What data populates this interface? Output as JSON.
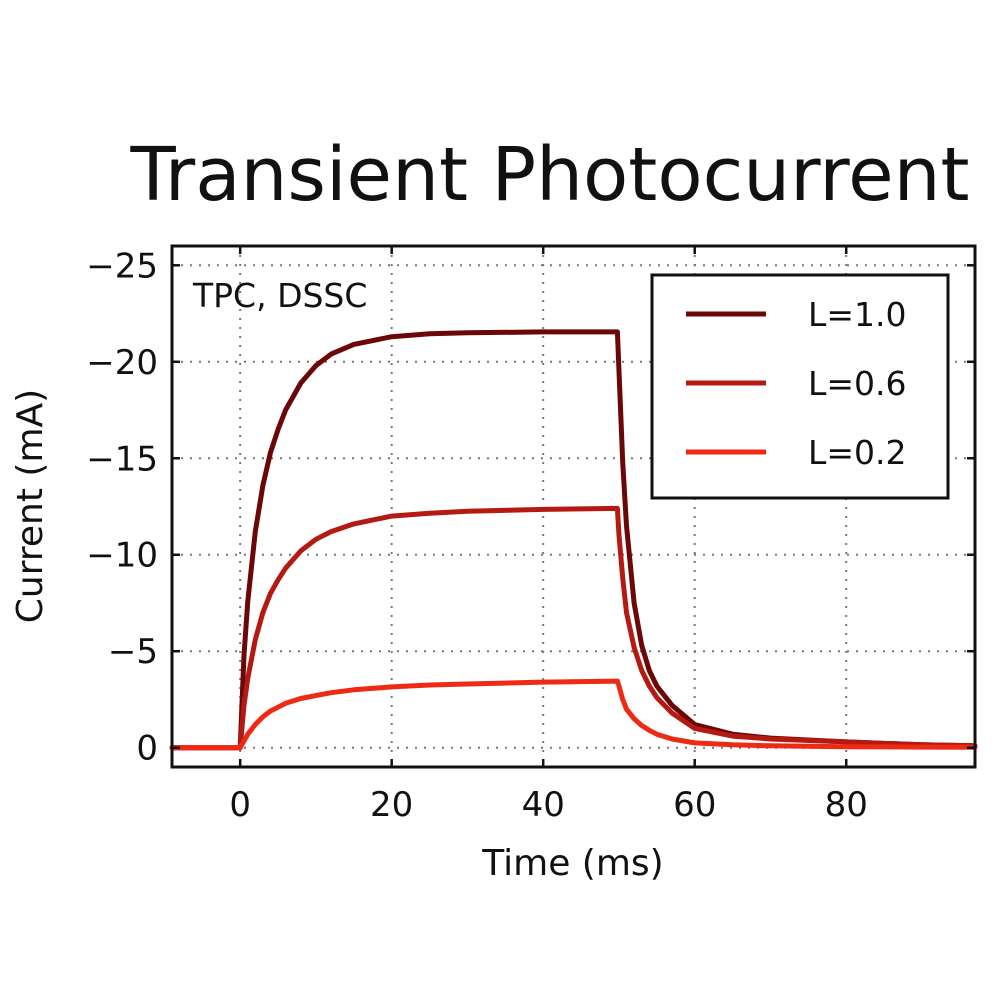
{
  "chart_data": {
    "type": "line",
    "title": "Transient Photocurrent",
    "xlabel": "Time (ms)",
    "ylabel": "Current (mA)",
    "annotation": "TPC, DSSC",
    "xlim": [
      -9,
      97
    ],
    "ylim": [
      1,
      -26
    ],
    "xticks": [
      0,
      20,
      40,
      60,
      80
    ],
    "yticks": [
      0,
      -5,
      -10,
      -15,
      -20,
      -25
    ],
    "xtick_labels": [
      "0",
      "20",
      "40",
      "60",
      "80"
    ],
    "ytick_labels": [
      "0",
      "−5",
      "−10",
      "−15",
      "−20",
      "−25"
    ],
    "grid": true,
    "legend_position": "top-right",
    "series": [
      {
        "name": "L=1.0",
        "color": "#6b0707",
        "x": [
          -9,
          0,
          0.5,
          1,
          2,
          3,
          4,
          5,
          6,
          8,
          10,
          12,
          15,
          20,
          25,
          30,
          40,
          49.8,
          50,
          50.5,
          51,
          52,
          53,
          54,
          55,
          57,
          60,
          65,
          70,
          80,
          90,
          97
        ],
        "y": [
          0,
          0,
          -4.8,
          -7.6,
          -11.2,
          -13.6,
          -15.3,
          -16.5,
          -17.5,
          -18.9,
          -19.8,
          -20.4,
          -20.9,
          -21.3,
          -21.45,
          -21.5,
          -21.55,
          -21.55,
          -19.5,
          -14.8,
          -11.5,
          -7.5,
          -5.3,
          -4.0,
          -3.2,
          -2.2,
          -1.2,
          -0.7,
          -0.5,
          -0.3,
          -0.15,
          -0.1
        ]
      },
      {
        "name": "L=0.6",
        "color": "#b51a12",
        "x": [
          -9,
          0,
          0.5,
          1,
          2,
          3,
          4,
          5,
          6,
          8,
          10,
          12,
          15,
          20,
          25,
          30,
          40,
          49.8,
          50,
          50.5,
          51,
          52,
          53,
          54,
          55,
          57,
          60,
          65,
          70,
          80,
          90,
          97
        ],
        "y": [
          0,
          0,
          -2.2,
          -3.6,
          -5.6,
          -7.0,
          -8.0,
          -8.7,
          -9.3,
          -10.2,
          -10.8,
          -11.2,
          -11.6,
          -12.0,
          -12.15,
          -12.25,
          -12.35,
          -12.4,
          -11.0,
          -8.8,
          -7.0,
          -5.2,
          -4.0,
          -3.2,
          -2.6,
          -1.8,
          -1.0,
          -0.6,
          -0.45,
          -0.3,
          -0.15,
          -0.1
        ]
      },
      {
        "name": "L=0.2",
        "color": "#ee2a14",
        "x": [
          -9,
          0,
          1,
          2,
          3,
          4,
          5,
          6,
          8,
          10,
          12,
          15,
          20,
          25,
          30,
          40,
          49.8,
          50,
          50.5,
          51,
          52,
          53,
          54,
          55,
          57,
          60,
          65,
          70,
          80,
          90,
          97
        ],
        "y": [
          0,
          0,
          -0.7,
          -1.2,
          -1.6,
          -1.9,
          -2.1,
          -2.3,
          -2.55,
          -2.7,
          -2.85,
          -3.0,
          -3.15,
          -3.25,
          -3.3,
          -3.4,
          -3.45,
          -3.2,
          -2.5,
          -2.0,
          -1.5,
          -1.15,
          -0.9,
          -0.7,
          -0.45,
          -0.25,
          -0.15,
          -0.1,
          -0.05,
          -0.03,
          -0.02
        ]
      }
    ]
  }
}
